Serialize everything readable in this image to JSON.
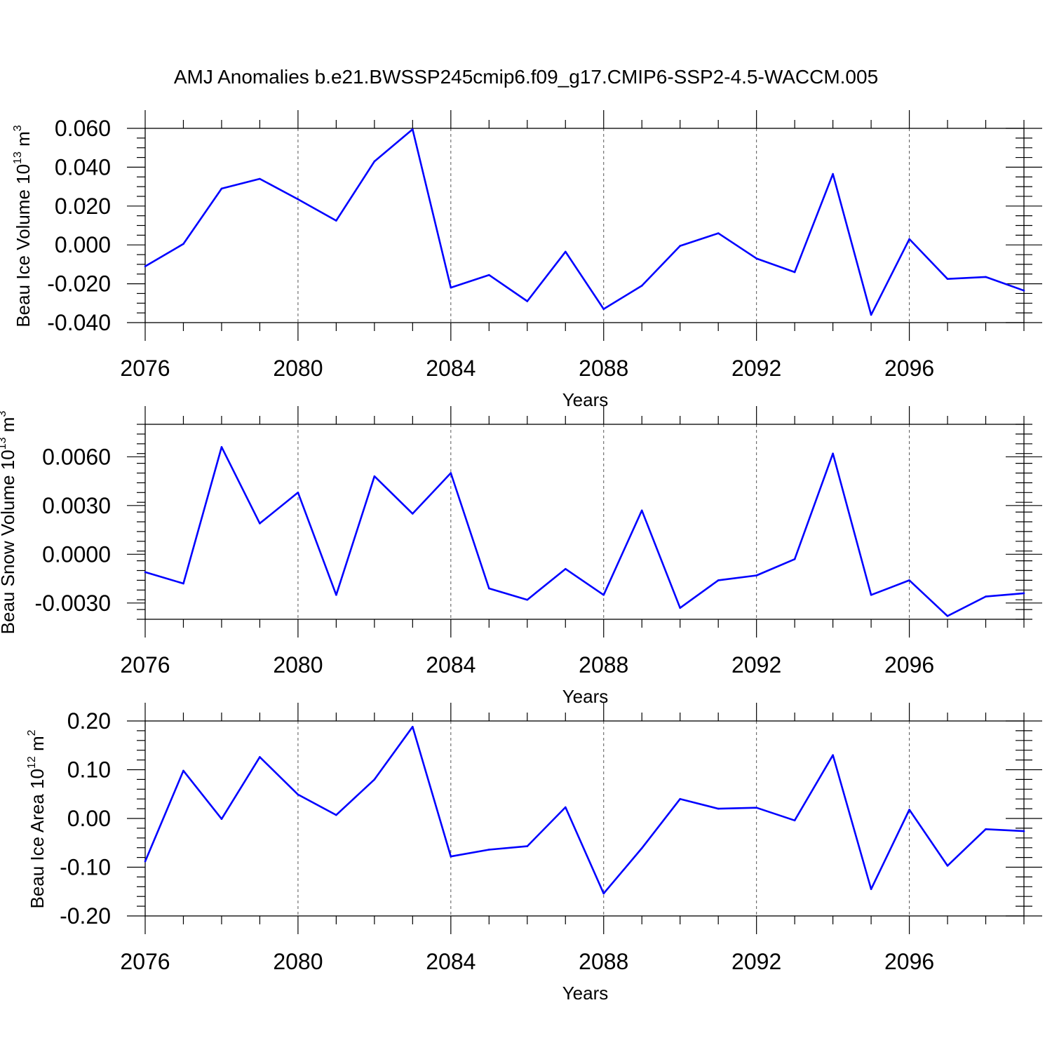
{
  "title": "AMJ Anomalies b.e21.BWSSP245cmip6.f09_g17.CMIP6-SSP2-4.5-WACCM.005",
  "colors": {
    "series": "#0000ff",
    "frame": "#000000",
    "grid": "#555555"
  },
  "chart_data": [
    {
      "type": "line",
      "ylabel": {
        "text": "Beau Ice Volume 10",
        "exp": "13",
        "unit": " m",
        "unit_exp": "3"
      },
      "xlabel": "Years",
      "xlim": [
        2076,
        2099
      ],
      "ylim": [
        -0.04,
        0.06
      ],
      "yticks": [
        -0.04,
        -0.02,
        0.0,
        0.02,
        0.04,
        0.06
      ],
      "ytick_labels": [
        "-0.040",
        "-0.020",
        "0.000",
        "0.020",
        "0.040",
        "0.060"
      ],
      "yminor_step": 0.005,
      "xticks": [
        2076,
        2080,
        2084,
        2088,
        2092,
        2096
      ],
      "grid": "dashed vertical at major x ticks",
      "x": [
        2076,
        2077,
        2078,
        2079,
        2080,
        2081,
        2082,
        2083,
        2084,
        2085,
        2086,
        2087,
        2088,
        2089,
        2090,
        2091,
        2092,
        2093,
        2094,
        2095,
        2096,
        2097,
        2098,
        2099
      ],
      "values": [
        -0.011,
        0.0005,
        0.029,
        0.034,
        0.0235,
        0.0125,
        0.043,
        0.0595,
        -0.022,
        -0.0155,
        -0.029,
        -0.0035,
        -0.033,
        -0.021,
        -0.0005,
        0.006,
        -0.007,
        -0.014,
        0.0365,
        -0.036,
        0.003,
        -0.0175,
        -0.0165,
        -0.0235
      ]
    },
    {
      "type": "line",
      "ylabel": {
        "text": "Beau Snow Volume 10",
        "exp": "13",
        "unit": " m",
        "unit_exp": "3"
      },
      "xlabel": "Years",
      "xlim": [
        2076,
        2099
      ],
      "ylim": [
        -0.004,
        0.008
      ],
      "yticks": [
        -0.003,
        0.0,
        0.003,
        0.006
      ],
      "ytick_labels": [
        "-0.0030",
        "0.0000",
        "0.0030",
        "0.0060"
      ],
      "yminor_step": 0.0006,
      "xticks": [
        2076,
        2080,
        2084,
        2088,
        2092,
        2096
      ],
      "grid": "dashed vertical at major x ticks",
      "x": [
        2076,
        2077,
        2078,
        2079,
        2080,
        2081,
        2082,
        2083,
        2084,
        2085,
        2086,
        2087,
        2088,
        2089,
        2090,
        2091,
        2092,
        2093,
        2094,
        2095,
        2096,
        2097,
        2098,
        2099
      ],
      "values": [
        -0.0011,
        -0.0018,
        0.0066,
        0.0019,
        0.0038,
        -0.0025,
        0.0048,
        0.0025,
        0.005,
        -0.0021,
        -0.0028,
        -0.0009,
        -0.0025,
        0.0027,
        -0.0033,
        -0.0016,
        -0.0013,
        -0.0003,
        0.0062,
        -0.0025,
        -0.0016,
        -0.0038,
        -0.0026,
        -0.0024
      ]
    },
    {
      "type": "line",
      "ylabel": {
        "text": "Beau Ice Area 10",
        "exp": "12",
        "unit": " m",
        "unit_exp": "2"
      },
      "xlabel": "Years",
      "xlim": [
        2076,
        2099
      ],
      "ylim": [
        -0.2,
        0.2
      ],
      "yticks": [
        -0.2,
        -0.1,
        0.0,
        0.1,
        0.2
      ],
      "ytick_labels": [
        "-0.20",
        "-0.10",
        "0.00",
        "0.10",
        "0.20"
      ],
      "yminor_step": 0.02,
      "xticks": [
        2076,
        2080,
        2084,
        2088,
        2092,
        2096
      ],
      "grid": "dashed vertical at major x ticks",
      "x": [
        2076,
        2077,
        2078,
        2079,
        2080,
        2081,
        2082,
        2083,
        2084,
        2085,
        2086,
        2087,
        2088,
        2089,
        2090,
        2091,
        2092,
        2093,
        2094,
        2095,
        2096,
        2097,
        2098,
        2099
      ],
      "values": [
        -0.088,
        0.098,
        -0.001,
        0.126,
        0.049,
        0.007,
        0.08,
        0.188,
        -0.078,
        -0.064,
        -0.057,
        0.023,
        -0.154,
        -0.061,
        0.04,
        0.02,
        0.022,
        -0.004,
        0.13,
        -0.145,
        0.018,
        -0.097,
        -0.022,
        -0.026
      ]
    }
  ]
}
